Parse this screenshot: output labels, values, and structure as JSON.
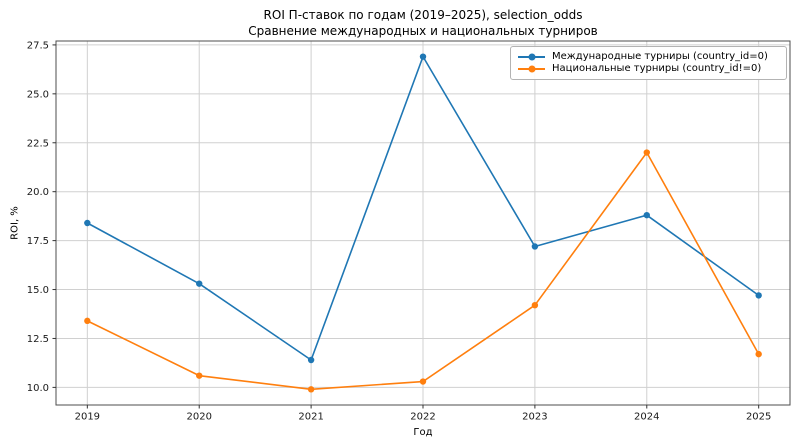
{
  "figure": {
    "title_line1": "ROI П-ставок по годам (2019–2025), selection_odds",
    "title_line2": "Сравнение международных и национальных турниров",
    "xlabel": "Год",
    "ylabel": "ROI, %"
  },
  "chart_data": {
    "type": "line",
    "title": "ROI П-ставок по годам (2019–2025), selection_odds",
    "subtitle": "Сравнение международных и национальных турниров",
    "xlabel": "Год",
    "ylabel": "ROI, %",
    "categories": [
      2019,
      2020,
      2021,
      2022,
      2023,
      2024,
      2025
    ],
    "series": [
      {
        "key": "international",
        "name": "Международные турниры (country_id=0)",
        "color": "#1f77b4",
        "marker": "circle",
        "values": [
          18.4,
          15.3,
          11.4,
          26.9,
          17.2,
          18.8,
          14.7
        ]
      },
      {
        "key": "national",
        "name": "Национальные турниры (country_id!=0)",
        "color": "#ff7f0e",
        "marker": "circle",
        "values": [
          13.4,
          10.6,
          9.9,
          10.3,
          14.2,
          22.0,
          11.7
        ]
      }
    ],
    "yticks": [
      10.0,
      12.5,
      15.0,
      17.5,
      20.0,
      22.5,
      25.0,
      27.5
    ],
    "ytick_labels": [
      "10.0",
      "12.5",
      "15.0",
      "17.5",
      "20.0",
      "22.5",
      "25.0",
      "27.5"
    ],
    "xtick_labels": [
      "2019",
      "2020",
      "2021",
      "2022",
      "2023",
      "2024",
      "2025"
    ],
    "ylim": [
      9.1,
      27.7
    ],
    "xlim": [
      2018.72,
      2025.28
    ],
    "grid": true,
    "legend_position": "upper right"
  }
}
